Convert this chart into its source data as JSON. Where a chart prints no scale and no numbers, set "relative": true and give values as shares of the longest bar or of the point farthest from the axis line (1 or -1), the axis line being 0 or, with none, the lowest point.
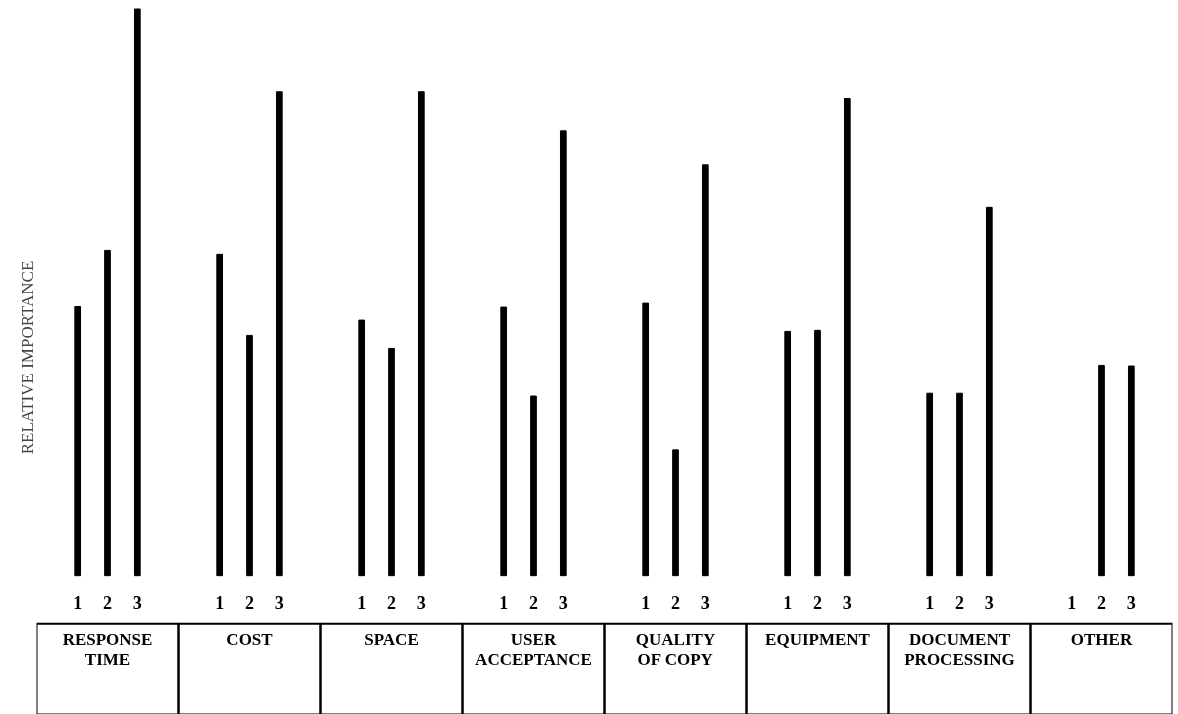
{
  "chart_data": {
    "type": "bar",
    "relative": true,
    "ylabel": "RELATIVE IMPORTANCE",
    "categories": [
      "RESPONSE TIME",
      "COST",
      "SPACE",
      "USER ACCEPTANCE",
      "QUALITY OF COPY",
      "EQUIPMENT",
      "DOCUMENT PROCESSING",
      "OTHER"
    ],
    "series": [
      {
        "name": "1",
        "color": "#000000",
        "values": [
          0.475,
          0.567,
          0.451,
          0.474,
          0.481,
          0.431,
          0.322,
          null
        ]
      },
      {
        "name": "2",
        "color": "#000000",
        "values": [
          0.574,
          0.424,
          0.401,
          0.317,
          0.222,
          0.433,
          0.322,
          0.371
        ]
      },
      {
        "name": "3",
        "color": "#000000",
        "values": [
          1.0,
          0.854,
          0.854,
          0.785,
          0.725,
          0.842,
          0.65,
          0.37
        ]
      }
    ]
  }
}
